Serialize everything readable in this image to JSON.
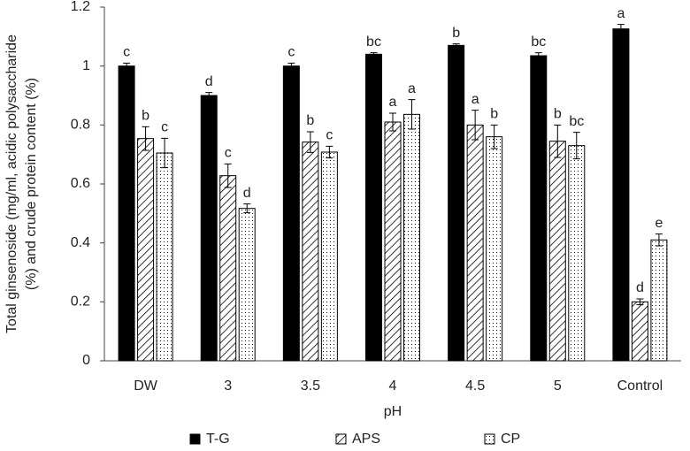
{
  "chart_data": {
    "type": "bar",
    "ylabel_lines": [
      "Total ginsenoside (mg/ml, acidic polysaccharide",
      "(%) and crude protein content (%)"
    ],
    "xlabel": "pH",
    "categories": [
      "DW",
      "3",
      "3.5",
      "4",
      "4.5",
      "5",
      "Control"
    ],
    "series": [
      {
        "name": "T-G",
        "color": "#000000",
        "pattern": "solid",
        "values": [
          1.0,
          0.9,
          1.0,
          1.04,
          1.07,
          1.035,
          1.126
        ],
        "errors": [
          0.01,
          0.01,
          0.01,
          0.005,
          0.005,
          0.01,
          0.015
        ],
        "letters": [
          "c",
          "d",
          "c",
          "bc",
          "b",
          "bc",
          "a"
        ]
      },
      {
        "name": "APS",
        "color": "#000000",
        "pattern": "hatch",
        "values": [
          0.754,
          0.628,
          0.742,
          0.81,
          0.8,
          0.745,
          0.2
        ],
        "errors": [
          0.04,
          0.04,
          0.035,
          0.03,
          0.05,
          0.055,
          0.01
        ],
        "letters": [
          "b",
          "c",
          "b",
          "a",
          "a",
          "b",
          "d"
        ]
      },
      {
        "name": "CP",
        "color": "#000000",
        "pattern": "dots",
        "values": [
          0.705,
          0.517,
          0.708,
          0.836,
          0.76,
          0.73,
          0.41
        ],
        "errors": [
          0.05,
          0.015,
          0.02,
          0.05,
          0.04,
          0.045,
          0.02
        ],
        "letters": [
          "c",
          "d",
          "c",
          "a",
          "b",
          "bc",
          "e"
        ]
      }
    ],
    "ylim": [
      0,
      1.2
    ],
    "yticks": [
      0,
      0.2,
      0.4,
      0.6,
      0.8,
      1,
      1.2
    ],
    "grid": false,
    "legend": "bottom"
  }
}
